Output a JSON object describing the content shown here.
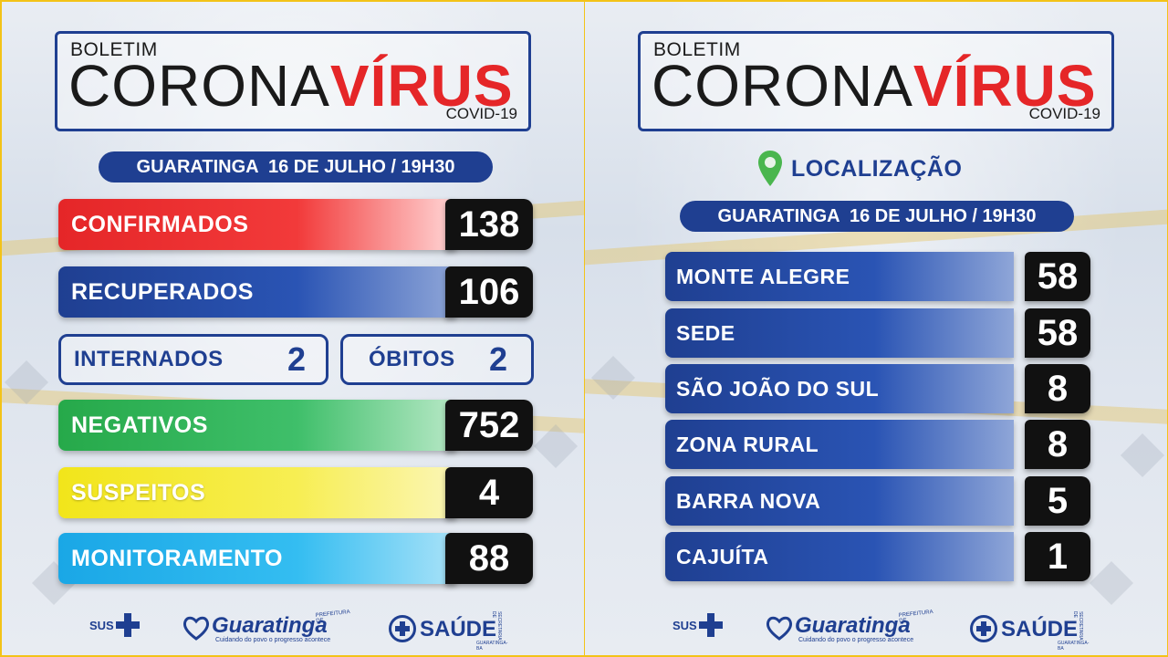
{
  "header": {
    "boletim": "BOLETIM",
    "corona": "CORONA",
    "virus": "VÍRUS",
    "covid": "COVID-19"
  },
  "left": {
    "date": "GUARATINGA  16 DE JULHO / 19H30",
    "stats": [
      {
        "label": "CONFIRMADOS",
        "value": "138"
      },
      {
        "label": "RECUPERADOS",
        "value": "106"
      },
      {
        "label": "NEGATIVOS",
        "value": "752"
      },
      {
        "label": "SUSPEITOS",
        "value": "4"
      },
      {
        "label": "MONITORAMENTO",
        "value": "88"
      }
    ],
    "internados": {
      "label": "INTERNADOS",
      "value": "2"
    },
    "obitos": {
      "label": "ÓBITOS",
      "value": "2"
    }
  },
  "right": {
    "location_title": "LOCALIZAÇÃO",
    "date": "GUARATINGA  16 DE JULHO / 19H30",
    "locations": [
      {
        "label": "MONTE ALEGRE",
        "value": "58"
      },
      {
        "label": "SEDE",
        "value": "58"
      },
      {
        "label": "SÃO JOÃO DO SUL",
        "value": "8"
      },
      {
        "label": "ZONA RURAL",
        "value": "8"
      },
      {
        "label": "BARRA NOVA",
        "value": "5"
      },
      {
        "label": "CAJUÍTA",
        "value": "1"
      }
    ]
  },
  "footer": {
    "sus": "SUS",
    "prefeitura_small": "PREFEITURA DE",
    "prefeitura_name": "Guaratinga",
    "prefeitura_slogan": "Cuidando do povo o progresso acontece",
    "saude_name": "SAÚDE",
    "saude_secretaria": "SECRETARIA DE",
    "saude_city": "GUARATINGA-BA"
  },
  "colors": {
    "navy": "#1f3f91",
    "red": "#e52628",
    "green": "#26a94a",
    "yellow": "#f2e51a",
    "cyan": "#1aa7e6",
    "frame": "#f3c318"
  }
}
